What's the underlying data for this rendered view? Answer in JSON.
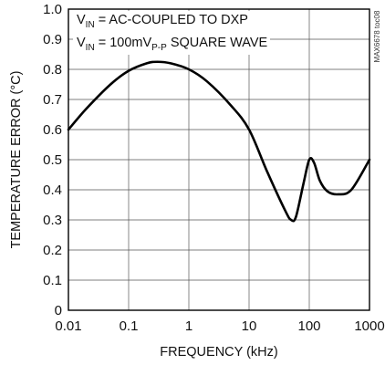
{
  "chart_data": {
    "type": "line",
    "title": "",
    "xlabel": "FREQUENCY (kHz)",
    "ylabel": "TEMPERATURE ERROR (°C)",
    "xscale": "log",
    "xlim": [
      0.01,
      1000
    ],
    "ylim": [
      0,
      1.0
    ],
    "grid": true,
    "x_ticks": [
      "0.01",
      "0.1",
      "1",
      "10",
      "100",
      "1000"
    ],
    "y_ticks": [
      "0",
      "0.1",
      "0.2",
      "0.3",
      "0.4",
      "0.5",
      "0.6",
      "0.7",
      "0.8",
      "0.9",
      "1.0"
    ],
    "annotations": {
      "line1_main": "V",
      "line1_sub": "IN",
      "line1_rest": " = AC-COUPLED TO DXP",
      "line2_main": "V",
      "line2_sub": "IN",
      "line2_mid": " = 100mV",
      "line2_sub2": "P-P",
      "line2_rest": " SQUARE WAVE",
      "side_label": "MAX6678 toc08"
    },
    "series": [
      {
        "color": "#000000",
        "x": [
          0.01,
          0.02,
          0.05,
          0.1,
          0.2,
          0.3,
          0.5,
          1,
          2,
          5,
          10,
          20,
          40,
          50,
          60,
          80,
          100,
          120,
          150,
          200,
          300,
          500,
          1000
        ],
        "y": [
          0.6,
          0.67,
          0.75,
          0.795,
          0.82,
          0.825,
          0.82,
          0.8,
          0.76,
          0.68,
          0.6,
          0.46,
          0.33,
          0.3,
          0.31,
          0.42,
          0.5,
          0.49,
          0.43,
          0.395,
          0.385,
          0.4,
          0.5
        ]
      }
    ]
  }
}
